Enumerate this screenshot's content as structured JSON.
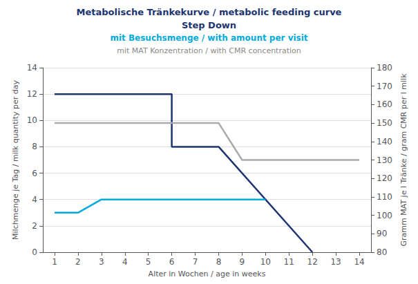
{
  "chart_data": {
    "type": "line",
    "title": [
      {
        "text": "Metabolische Tränkekurve / metabolic feeding curve",
        "color": "#1c3470"
      },
      {
        "text": "Step Down",
        "color": "#1c3470"
      },
      {
        "text": "mit Besuchsmenge / with amount per visit",
        "color": "#00aadd"
      },
      {
        "text": "mit MAT Konzentration / with CMR concentration",
        "color": "#888888"
      }
    ],
    "xlabel": "Alter in Wochen / age in weeks",
    "ylabel": "Milchmenge je Tag / milk quantity per day",
    "y2label": "Gramm MAT je l Tränke / gram CMR per l milk",
    "xlim": [
      0.5,
      14.5
    ],
    "xticks": [
      1,
      2,
      3,
      4,
      5,
      6,
      7,
      8,
      9,
      10,
      11,
      12,
      13,
      14
    ],
    "ylim": [
      0,
      14
    ],
    "yticks": [
      0,
      2,
      4,
      6,
      8,
      10,
      12,
      14
    ],
    "y2lim": [
      80,
      180
    ],
    "y2ticks": [
      80,
      90,
      100,
      110,
      120,
      130,
      140,
      150,
      160,
      170,
      180
    ],
    "grid": true,
    "series": [
      {
        "x": [
          1,
          6,
          6,
          8,
          8,
          12
        ],
        "values": [
          12,
          12,
          8,
          8,
          8,
          0
        ],
        "color": "#1c3470"
      },
      {
        "x": [
          1,
          2,
          2,
          3,
          10
        ],
        "values": [
          3,
          3,
          3,
          4,
          4
        ],
        "color": "#00aadd"
      },
      {
        "x": [
          1,
          8,
          9,
          14
        ],
        "values": [
          9.8,
          9.8,
          7.0,
          7.0
        ],
        "color": "#aaaaaa"
      }
    ]
  }
}
